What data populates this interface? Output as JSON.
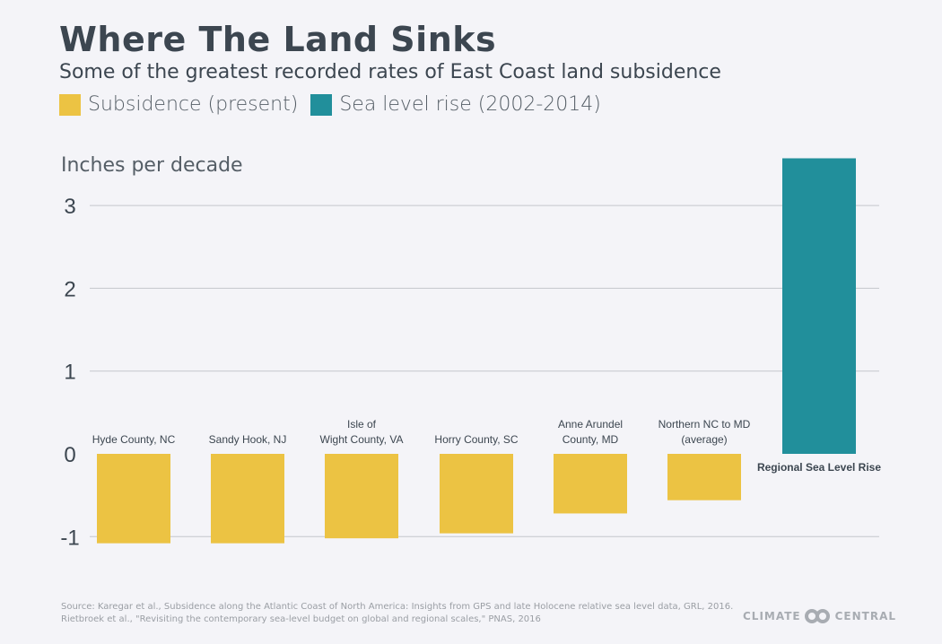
{
  "chart_data": {
    "type": "bar",
    "title": "Where The Land Sinks",
    "subtitle": "Some of the greatest recorded rates of East Coast land subsidence",
    "ylabel": "Inches per decade",
    "ylim": [
      -1.2,
      3.7
    ],
    "yticks": [
      3,
      2,
      1,
      0,
      -1
    ],
    "ytick_labels": [
      "3",
      "2",
      "1",
      "0",
      "-1"
    ],
    "grid": true,
    "legend_position": "top-left",
    "legend": [
      {
        "name": "Subsidence (present)",
        "color": "#ecc343"
      },
      {
        "name": "Sea level rise (2002-2014)",
        "color": "#218f9b"
      }
    ],
    "categories": [
      [
        "Hyde County, NC"
      ],
      [
        "Sandy Hook, NJ"
      ],
      [
        "Isle of",
        "Wight County, VA"
      ],
      [
        "Horry County, SC"
      ],
      [
        "Anne Arundel",
        "County, MD"
      ],
      [
        "Northern NC to MD",
        "(average)"
      ],
      [
        "Regional Sea Level Rise"
      ]
    ],
    "values": [
      -1.08,
      -1.08,
      -1.02,
      -0.96,
      -0.72,
      -0.56,
      3.57
    ],
    "series_index": [
      0,
      0,
      0,
      0,
      0,
      0,
      1
    ]
  },
  "source": [
    "Source: Karegar et al., Subsidence along the Atlantic Coast of North America: Insights from GPS and late Holocene relative sea level data, GRL, 2016.",
    "Rietbroek et al., \"Revisiting the contemporary sea-level budget on global and regional scales,\" PNAS, 2016"
  ],
  "logo": {
    "left": "CLIMATE",
    "right": "CENTRAL"
  }
}
